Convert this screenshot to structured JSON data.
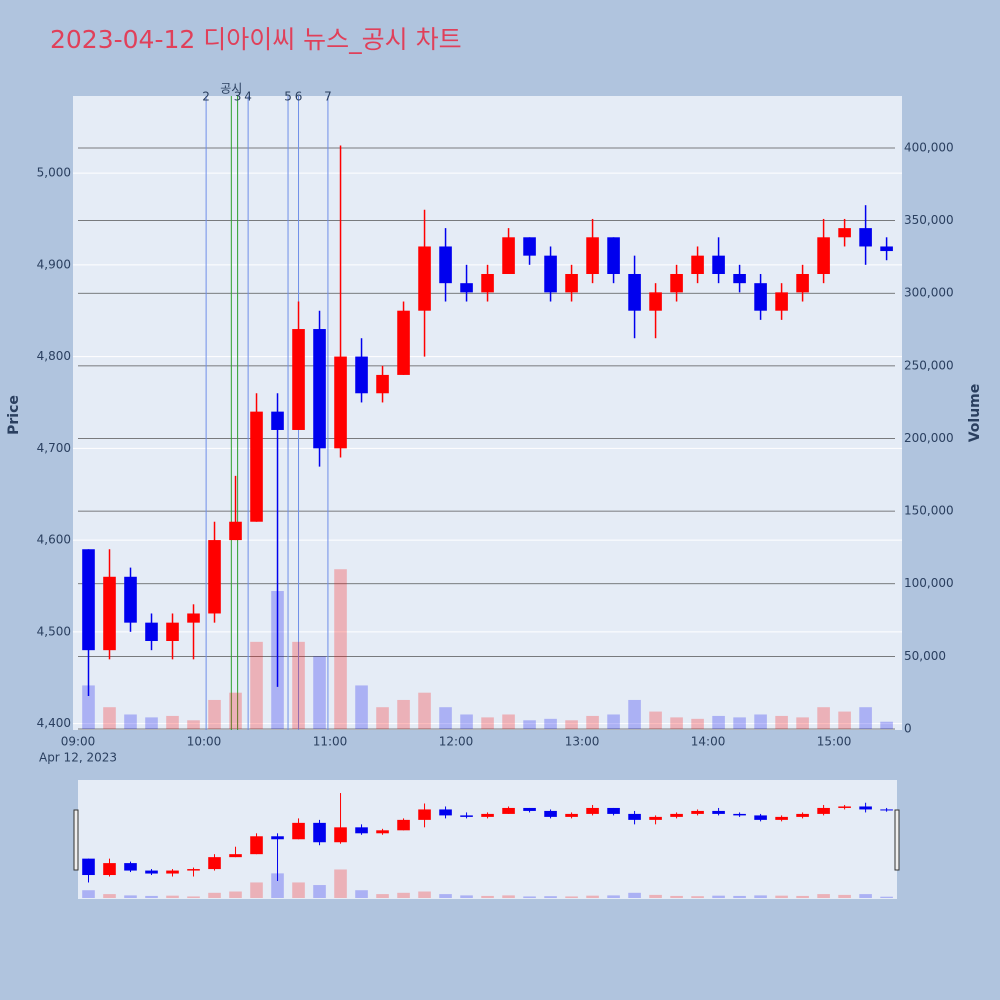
{
  "chart_data": {
    "type": "candlestick",
    "title": "2023-04-12 디아이씨 뉴스_공시 차트",
    "y_label": "Price",
    "y2_label": "Volume",
    "increasing_color": "#ff0000",
    "decreasing_color": "#0000ee",
    "x": [
      "09:00",
      "09:10",
      "09:20",
      "09:30",
      "09:40",
      "09:50",
      "10:00",
      "10:10",
      "10:20",
      "10:30",
      "10:40",
      "10:50",
      "11:00",
      "11:10",
      "11:20",
      "11:30",
      "11:40",
      "11:50",
      "12:00",
      "12:10",
      "12:20",
      "12:30",
      "12:40",
      "12:50",
      "13:00",
      "13:10",
      "13:20",
      "13:30",
      "13:40",
      "13:50",
      "14:00",
      "14:10",
      "14:20",
      "14:30",
      "14:40",
      "14:50",
      "15:00",
      "15:10",
      "15:20"
    ],
    "open": [
      4590,
      4480,
      4560,
      4510,
      4490,
      4510,
      4520,
      4600,
      4620,
      4740,
      4720,
      4830,
      4700,
      4800,
      4760,
      4780,
      4850,
      4920,
      4880,
      4870,
      4890,
      4930,
      4910,
      4870,
      4890,
      4930,
      4890,
      4850,
      4870,
      4890,
      4910,
      4890,
      4880,
      4850,
      4870,
      4890,
      4930,
      4940,
      4920
    ],
    "high": [
      4590,
      4590,
      4570,
      4520,
      4520,
      4530,
      4620,
      4670,
      4760,
      4760,
      4860,
      4850,
      5030,
      4820,
      4790,
      4860,
      4960,
      4940,
      4900,
      4900,
      4940,
      4930,
      4920,
      4900,
      4950,
      4930,
      4910,
      4880,
      4900,
      4920,
      4930,
      4900,
      4890,
      4880,
      4900,
      4950,
      4950,
      4965,
      4930
    ],
    "low": [
      4430,
      4470,
      4500,
      4480,
      4470,
      4470,
      4510,
      4600,
      4620,
      4440,
      4720,
      4680,
      4690,
      4750,
      4750,
      4780,
      4800,
      4860,
      4860,
      4860,
      4890,
      4900,
      4860,
      4860,
      4880,
      4880,
      4820,
      4820,
      4860,
      4880,
      4880,
      4870,
      4840,
      4840,
      4860,
      4880,
      4920,
      4900,
      4905
    ],
    "close": [
      4480,
      4560,
      4510,
      4490,
      4510,
      4520,
      4600,
      4620,
      4740,
      4720,
      4830,
      4700,
      4800,
      4760,
      4780,
      4850,
      4920,
      4880,
      4870,
      4890,
      4930,
      4910,
      4870,
      4890,
      4930,
      4890,
      4850,
      4870,
      4890,
      4910,
      4890,
      4880,
      4850,
      4870,
      4890,
      4930,
      4940,
      4920,
      4915
    ],
    "volume": [
      30000,
      15000,
      10000,
      8000,
      9000,
      6000,
      20000,
      25000,
      60000,
      95000,
      60000,
      50000,
      110000,
      30000,
      15000,
      20000,
      25000,
      15000,
      10000,
      8000,
      10000,
      6000,
      7000,
      6000,
      9000,
      10000,
      20000,
      12000,
      8000,
      7000,
      9000,
      8000,
      10000,
      9000,
      8000,
      15000,
      12000,
      15000,
      5000
    ],
    "xlim": [
      "09:00",
      "15:29"
    ],
    "xticks": [
      "09:00",
      "10:00",
      "11:00",
      "12:00",
      "13:00",
      "14:00",
      "15:00"
    ],
    "x_date_label": "Apr 12, 2023",
    "ylim": [
      4393,
      5084
    ],
    "yticks": [
      {
        "value": 4400,
        "label": "4,400"
      },
      {
        "value": 4500,
        "label": "4,500"
      },
      {
        "value": 4600,
        "label": "4,600"
      },
      {
        "value": 4700,
        "label": "4,700"
      },
      {
        "value": 4800,
        "label": "4,800"
      },
      {
        "value": 4900,
        "label": "4,900"
      },
      {
        "value": 5000,
        "label": "5,000"
      }
    ],
    "y2lim": [
      0,
      435800
    ],
    "y2ticks": [
      0,
      {
        "value": 50000,
        "label": "50,000"
      },
      {
        "value": 100000,
        "label": "100,000"
      },
      {
        "value": 150000,
        "label": "150,000"
      },
      {
        "value": 200000,
        "label": "200,000"
      },
      {
        "value": 250000,
        "label": "250,000"
      },
      {
        "value": 300000,
        "label": "300,000"
      },
      {
        "value": 350000,
        "label": "350,000"
      },
      {
        "value": 400000,
        "label": "400,000"
      }
    ],
    "notices": [
      {
        "label": "2",
        "x": "10:01",
        "color": "#6f8fe8"
      },
      {
        "label": "공시",
        "x": "10:13",
        "color": "#2ca02c"
      },
      {
        "label": "3",
        "x": "10:16",
        "color": "#2ca02c"
      },
      {
        "label": "4",
        "x": "10:21",
        "color": "#6f8fe8"
      },
      {
        "label": "5",
        "x": "10:40",
        "color": "#6f8fe8"
      },
      {
        "label": "6",
        "x": "10:45",
        "color": "#6f8fe8"
      },
      {
        "label": "7",
        "x": "10:59",
        "color": "#6f8fe8"
      }
    ]
  }
}
